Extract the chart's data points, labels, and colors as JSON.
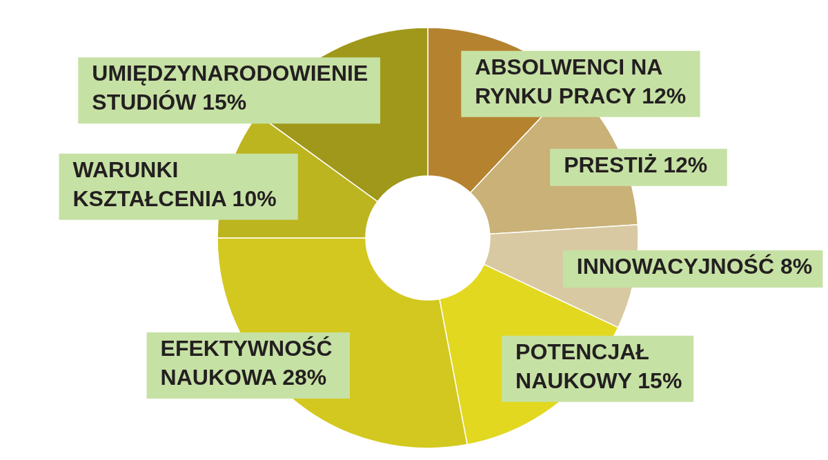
{
  "chart_data": {
    "type": "donut",
    "categories": [
      "ABSOLWENCI NA RYNKU PRACY",
      "PRESTIŻ",
      "INNOWACYJNOŚĆ",
      "POTENCJAŁ NAUKOWY",
      "EFEKTYWNOŚĆ NAUKOWA",
      "WARUNKI KSZTAŁCENIA",
      "UMIĘDZYNARODOWIENIE STUDIÓW"
    ],
    "values": [
      12,
      12,
      8,
      15,
      28,
      10,
      15
    ],
    "colors": [
      "#b5832f",
      "#c9b177",
      "#d9c9a2",
      "#e2d820",
      "#d3c820",
      "#bdb51f",
      "#9f981a"
    ],
    "value_labels": [
      "12%",
      "12%",
      "8%",
      "15%",
      "28%",
      "10%",
      "15%"
    ]
  }
}
